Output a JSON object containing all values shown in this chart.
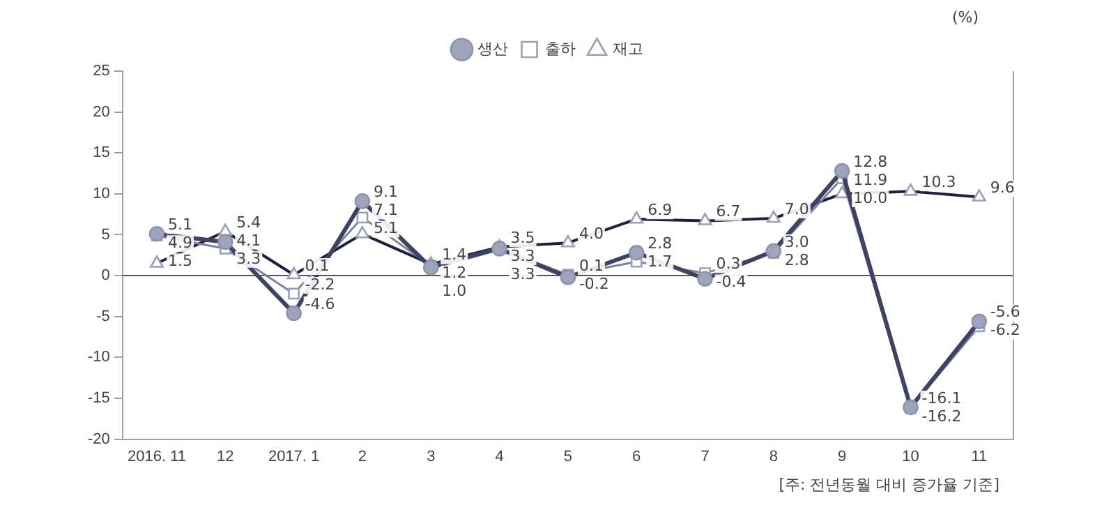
{
  "chart_data": {
    "type": "line",
    "ylabel": "(%)",
    "categories": [
      "2016. 11",
      "12",
      "2017. 1",
      "2",
      "3",
      "4",
      "5",
      "6",
      "7",
      "8",
      "9",
      "10",
      "11"
    ],
    "series": [
      {
        "name": "생산",
        "color": "#3d4463",
        "marker": "circle",
        "values": [
          5.1,
          4.1,
          -4.6,
          9.1,
          1.0,
          3.3,
          -0.2,
          2.8,
          -0.4,
          3.0,
          12.8,
          -16.1,
          -5.6
        ],
        "value_labels": [
          "5.1",
          "4.1",
          "-4.6",
          "9.1",
          "1.0",
          "3.3",
          "-0.2",
          "2.8",
          "-0.4",
          "3.0",
          "12.8",
          "-16.1",
          "-5.6"
        ]
      },
      {
        "name": "출하",
        "color": "#7d8399",
        "marker": "square",
        "values": [
          4.9,
          3.3,
          -2.2,
          7.1,
          1.2,
          3.3,
          0.1,
          1.7,
          0.3,
          2.8,
          11.9,
          -16.2,
          -6.2
        ],
        "value_labels": [
          "4.9",
          "3.3",
          "-2.2",
          "7.1",
          "1.2",
          "3.3",
          "0.1",
          "1.7",
          "0.3",
          "2.8",
          "11.9",
          "-16.2",
          "-6.2"
        ]
      },
      {
        "name": "재고",
        "color": "#1c2140",
        "marker": "triangle",
        "values": [
          1.5,
          5.4,
          0.1,
          5.1,
          1.4,
          3.5,
          4.0,
          6.9,
          6.7,
          7.0,
          10.0,
          10.3,
          9.6
        ],
        "value_labels": [
          "1.5",
          "5.4",
          "0.1",
          "5.1",
          "1.4",
          "3.5",
          "4.0",
          "6.9",
          "6.7",
          "7.0",
          "10.0",
          "10.3",
          "9.6"
        ]
      }
    ],
    "ylim": [
      -20,
      25
    ],
    "yticks": [
      -20,
      -15,
      -10,
      -5,
      0,
      5,
      10,
      15,
      20,
      25
    ],
    "grid": false,
    "legend": "top",
    "ref_lines": [
      {
        "axis": "y",
        "value": 0,
        "color": "#555555"
      }
    ],
    "annotations": [
      "[주: 전년동월 대비 증가율 기준]"
    ]
  }
}
